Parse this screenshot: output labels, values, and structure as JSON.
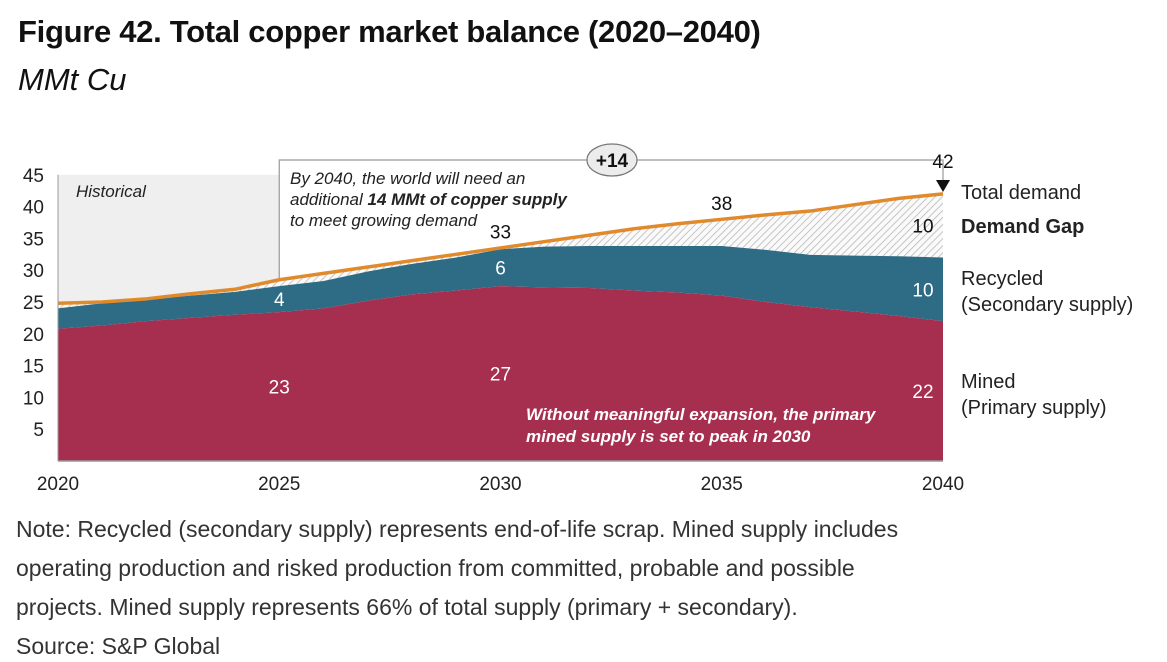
{
  "title": "Figure 42. Total copper market balance (2020–2040)",
  "subtitle": "MMt Cu",
  "chart_data": {
    "type": "area",
    "title": "Figure 42. Total copper market balance (2020–2040)",
    "ylabel": "MMt Cu",
    "x": [
      2020,
      2021,
      2022,
      2023,
      2024,
      2025,
      2026,
      2027,
      2028,
      2029,
      2030,
      2031,
      2032,
      2033,
      2034,
      2035,
      2036,
      2037,
      2038,
      2039,
      2040
    ],
    "xticks": [
      "2020",
      "2025",
      "2030",
      "2035",
      "2040"
    ],
    "yticks": [
      "5",
      "10",
      "15",
      "20",
      "25",
      "30",
      "35",
      "40",
      "45"
    ],
    "ylim": [
      0,
      45
    ],
    "grid": false,
    "series": [
      {
        "name": "Mined (Primary supply)",
        "kind": "area",
        "color": "#a62f4f",
        "values": [
          20.8,
          21.3,
          22,
          22.5,
          23,
          23.4,
          24,
          25.2,
          26.2,
          26.8,
          27.5,
          27.3,
          27.2,
          26.8,
          26.5,
          26,
          25,
          24.2,
          23.5,
          22.8,
          22
        ]
      },
      {
        "name": "Recycled (Secondary supply)",
        "kind": "area",
        "color": "#2e6b85",
        "values": [
          3.2,
          3.5,
          3.4,
          3.5,
          3.6,
          4.1,
          4.3,
          4.6,
          4.8,
          5.2,
          5.8,
          6.4,
          6.6,
          7,
          7.3,
          7.8,
          8.2,
          8.2,
          8.8,
          9.4,
          10
        ]
      },
      {
        "name": "Demand Gap",
        "kind": "hatched",
        "color": "#b8b8b8"
      },
      {
        "name": "Total demand",
        "kind": "line",
        "color": "#e08a2c",
        "values": [
          24.8,
          25,
          25.5,
          26.3,
          27,
          28.5,
          29.5,
          30.5,
          31.5,
          32.5,
          33.5,
          34.5,
          35.5,
          36.5,
          37.3,
          38,
          38.7,
          39.3,
          40.3,
          41.3,
          42
        ]
      }
    ],
    "data_labels": [
      {
        "text": "23",
        "year": 2025,
        "layer": "mined"
      },
      {
        "text": "4",
        "year": 2025,
        "layer": "recycled"
      },
      {
        "text": "27",
        "year": 2030,
        "layer": "mined"
      },
      {
        "text": "6",
        "year": 2030,
        "layer": "recycled"
      },
      {
        "text": "33",
        "year": 2030,
        "layer": "demand"
      },
      {
        "text": "38",
        "year": 2035,
        "layer": "demand"
      },
      {
        "text": "22",
        "year": 2040,
        "layer": "mined"
      },
      {
        "text": "10",
        "year": 2040,
        "layer": "recycled"
      },
      {
        "text": "10",
        "year": 2040,
        "layer": "gap"
      },
      {
        "text": "42",
        "year": 2040,
        "layer": "top"
      }
    ],
    "legend": [
      "Total demand",
      "Demand Gap",
      "Recycled",
      "(Secondary supply)",
      "Mined",
      "(Primary supply)"
    ],
    "historical_label": "Historical",
    "historical_range": [
      2020,
      2025
    ],
    "callout": {
      "pre": "By 2040, the world will need an",
      "line2_pre": "additional ",
      "line2_bold": "14 MMt of copper supply",
      "line3": "to meet growing demand"
    },
    "delta_badge": "+14",
    "mined_note": [
      "Without meaningful expansion,  the primary",
      "mined supply is set to peak in 2030"
    ]
  },
  "note_lines": [
    "Note: Recycled (secondary supply) represents end-of-life scrap. Mined supply includes",
    "operating production and risked production from committed, probable and possible",
    "projects. Mined supply represents 66% of total supply (primary + secondary).",
    "Source: S&P Global"
  ]
}
